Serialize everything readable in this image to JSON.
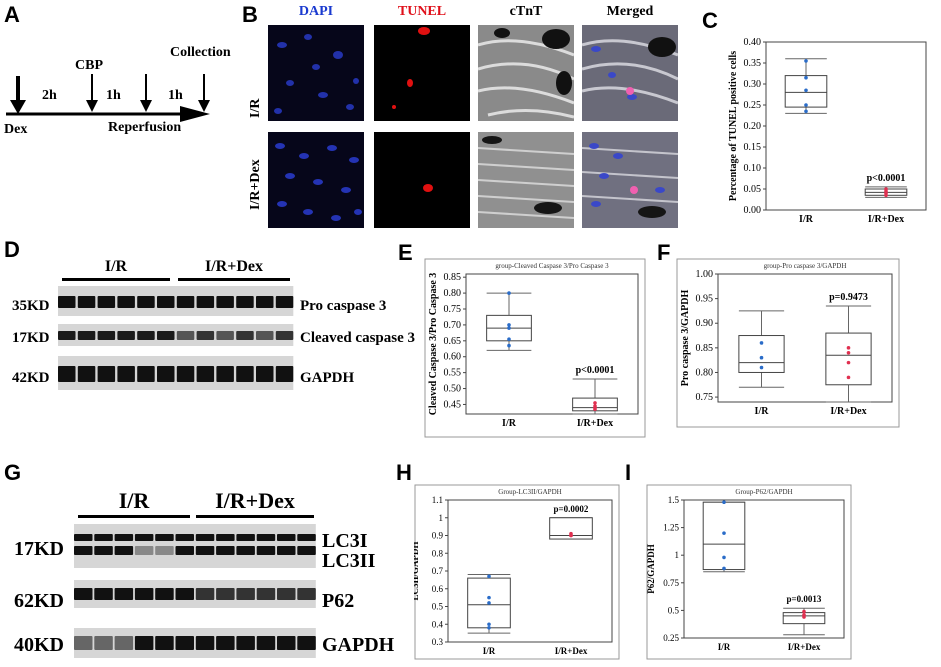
{
  "panels": {
    "A": "A",
    "B": "B",
    "C": "C",
    "D": "D",
    "E": "E",
    "F": "F",
    "G": "G",
    "H": "H",
    "I": "I"
  },
  "panelA": {
    "cbp": "CBP",
    "collection": "Collection",
    "dex": "Dex",
    "reperfusion": "Reperfusion",
    "t1": "2h",
    "t2": "1h",
    "t3": "1h"
  },
  "panelB": {
    "columns": [
      "DAPI",
      "TUNEL",
      "cTnT",
      "Merged"
    ],
    "column_colors": [
      "#1a3ad0",
      "#e0101a",
      "#222222",
      "#222222"
    ],
    "rows": [
      "I/R",
      "I/R+Dex"
    ]
  },
  "panelD": {
    "groups": [
      "I/R",
      "I/R+Dex"
    ],
    "bands": [
      {
        "kd": "35KD",
        "name": "Pro caspase 3"
      },
      {
        "kd": "17KD",
        "name": "Cleaved caspase 3"
      },
      {
        "kd": "42KD",
        "name": "GAPDH"
      }
    ]
  },
  "panelG": {
    "groups": [
      "I/R",
      "I/R+Dex"
    ],
    "bands": [
      {
        "kd": "17KD",
        "name": "LC3I",
        "name2": "LC3II"
      },
      {
        "kd": "62KD",
        "name": "P62"
      },
      {
        "kd": "40KD",
        "name": "GAPDH"
      }
    ]
  },
  "chart_data": [
    {
      "id": "C",
      "type": "box",
      "title": "",
      "ylabel": "Percentage of TUNEL positive cells",
      "categories": [
        "I/R",
        "I/R+Dex"
      ],
      "ylim": [
        0,
        0.4
      ],
      "yticks": [
        "0.00",
        "0.05",
        "0.10",
        "0.15",
        "0.20",
        "0.25",
        "0.30",
        "0.35",
        "0.40"
      ],
      "boxes": [
        {
          "min": 0.23,
          "q1": 0.245,
          "median": 0.28,
          "q3": 0.32,
          "max": 0.36,
          "points": [
            0.355,
            0.315,
            0.285,
            0.25,
            0.235
          ],
          "color": "#2a6cc8"
        },
        {
          "min": 0.03,
          "q1": 0.035,
          "median": 0.042,
          "q3": 0.05,
          "max": 0.055,
          "points": [
            0.05,
            0.045,
            0.04,
            0.035
          ],
          "color": "#e03050"
        }
      ],
      "annotation": "p<0.0001"
    },
    {
      "id": "E",
      "type": "box",
      "title": "group-Cleaved Caspase 3/Pro Caspase 3",
      "ylabel": "Cleaved Caspase 3/Pro Caspase 3",
      "categories": [
        "I/R",
        "I/R+Dex"
      ],
      "ylim": [
        0.42,
        0.86
      ],
      "yticks": [
        "0.45",
        "0.50",
        "0.55",
        "0.60",
        "0.65",
        "0.70",
        "0.75",
        "0.80",
        "0.85"
      ],
      "boxes": [
        {
          "min": 0.62,
          "q1": 0.65,
          "median": 0.69,
          "q3": 0.73,
          "max": 0.8,
          "points": [
            0.8,
            0.7,
            0.69,
            0.655,
            0.635
          ],
          "color": "#2a6cc8"
        },
        {
          "min": 0.42,
          "q1": 0.43,
          "median": 0.44,
          "q3": 0.47,
          "max": 0.53,
          "points": [
            0.455,
            0.445,
            0.44,
            0.435
          ],
          "color": "#e03050"
        }
      ],
      "annotation": "p<0.0001"
    },
    {
      "id": "F",
      "type": "box",
      "title": "group-Pro caspase 3/GAPDH",
      "ylabel": "Pro caspase 3/GAPDH",
      "categories": [
        "I/R",
        "I/R+Dex"
      ],
      "ylim": [
        0.74,
        1.0
      ],
      "yticks": [
        "0.75",
        "0.80",
        "0.85",
        "0.90",
        "0.95",
        "1.00"
      ],
      "boxes": [
        {
          "min": 0.77,
          "q1": 0.8,
          "median": 0.82,
          "q3": 0.875,
          "max": 0.925,
          "points": [
            0.86,
            0.83,
            0.81
          ],
          "color": "#2a6cc8"
        },
        {
          "min": 0.74,
          "q1": 0.775,
          "median": 0.835,
          "q3": 0.88,
          "max": 0.935,
          "points": [
            0.85,
            0.84,
            0.82,
            0.79
          ],
          "color": "#e03050"
        }
      ],
      "annotation": "p=0.9473"
    },
    {
      "id": "H",
      "type": "box",
      "title": "Group-LC3II/GAPDH",
      "ylabel": "LC3II/GAPDH",
      "categories": [
        "I/R",
        "I/R+Dex"
      ],
      "ylim": [
        0.3,
        1.1
      ],
      "yticks": [
        "0.3",
        "0.4",
        "0.5",
        "0.6",
        "0.7",
        "0.8",
        "0.9",
        "1",
        "1.1"
      ],
      "boxes": [
        {
          "min": 0.35,
          "q1": 0.38,
          "median": 0.51,
          "q3": 0.66,
          "max": 0.68,
          "points": [
            0.67,
            0.55,
            0.52,
            0.4,
            0.38
          ],
          "color": "#2a6cc8"
        },
        {
          "min": 0.88,
          "q1": 0.88,
          "median": 0.9,
          "q3": 1.0,
          "max": 1.0,
          "points": [
            0.91,
            0.9,
            0.9
          ],
          "color": "#e03050"
        }
      ],
      "annotation": "p=0.0002"
    },
    {
      "id": "I",
      "type": "box",
      "title": "Group-P62/GAPDH",
      "ylabel": "P62/GAPDH",
      "categories": [
        "I/R",
        "I/R+Dex"
      ],
      "ylim": [
        0.25,
        1.5
      ],
      "yticks": [
        "0.25",
        "0.5",
        "0.75",
        "1",
        "1.25",
        "1.5"
      ],
      "boxes": [
        {
          "min": 0.85,
          "q1": 0.87,
          "median": 1.1,
          "q3": 1.48,
          "max": 1.48,
          "points": [
            1.48,
            1.2,
            0.98,
            0.88
          ],
          "color": "#2a6cc8"
        },
        {
          "min": 0.28,
          "q1": 0.38,
          "median": 0.45,
          "q3": 0.48,
          "max": 0.52,
          "points": [
            0.49,
            0.46,
            0.44
          ],
          "color": "#e03050"
        }
      ],
      "annotation": "p=0.0013"
    }
  ]
}
